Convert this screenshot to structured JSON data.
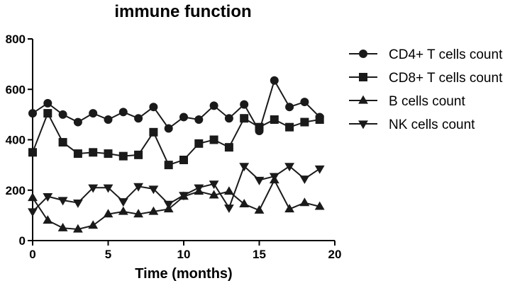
{
  "chart_data": {
    "type": "line",
    "title": "immune function",
    "xlabel": "Time (months)",
    "ylabel": "",
    "xlim": [
      0,
      20
    ],
    "ylim": [
      0,
      800
    ],
    "xticks": [
      "0",
      "5",
      "10",
      "15",
      "20"
    ],
    "yticks": [
      "0",
      "200",
      "400",
      "600",
      "800"
    ],
    "grid": false,
    "legend_position": "right",
    "x": [
      0,
      1,
      2,
      3,
      4,
      5,
      6,
      7,
      8,
      9,
      10,
      11,
      12,
      13,
      14,
      15,
      16,
      17,
      18,
      19
    ],
    "series": [
      {
        "name": "CD4+ T cells count",
        "marker": "circle",
        "values": [
          505,
          545,
          500,
          470,
          505,
          480,
          510,
          485,
          530,
          445,
          490,
          480,
          535,
          485,
          540,
          435,
          635,
          530,
          550,
          490
        ]
      },
      {
        "name": "CD8+ T cells count",
        "marker": "square",
        "values": [
          350,
          505,
          390,
          345,
          350,
          345,
          335,
          340,
          430,
          300,
          320,
          385,
          400,
          370,
          485,
          450,
          480,
          450,
          470,
          480
        ]
      },
      {
        "name": "B cells count",
        "marker": "triangle-up",
        "values": [
          170,
          80,
          50,
          45,
          60,
          105,
          115,
          105,
          115,
          125,
          175,
          195,
          180,
          195,
          145,
          120,
          240,
          125,
          150,
          135
        ]
      },
      {
        "name": "NK cells count",
        "marker": "triangle-down",
        "values": [
          115,
          175,
          160,
          150,
          210,
          210,
          155,
          215,
          205,
          145,
          180,
          210,
          225,
          130,
          295,
          240,
          255,
          295,
          245,
          285
        ]
      }
    ]
  }
}
